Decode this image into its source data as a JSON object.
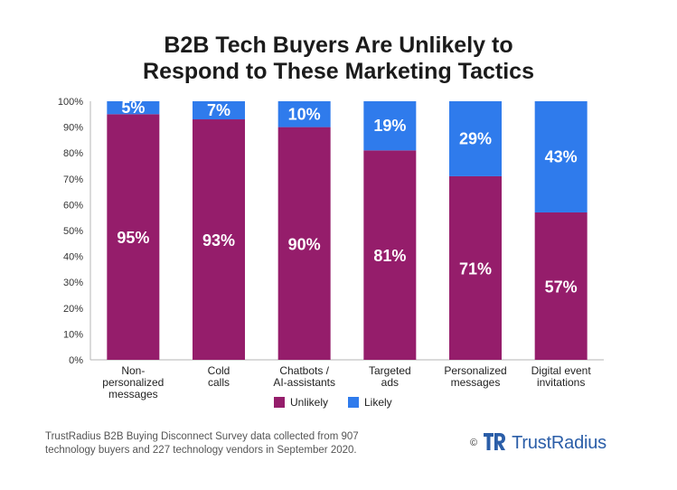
{
  "title_line1": "B2B Tech Buyers Are Unlikely to",
  "title_line2": "Respond to These Marketing Tactics",
  "chart_data": {
    "type": "bar",
    "stacked": true,
    "title": "B2B Tech Buyers Are Unlikely to Respond to These Marketing Tactics",
    "categories": [
      [
        "Non-",
        "personalized",
        "messages"
      ],
      [
        "Cold",
        "calls"
      ],
      [
        "Chatbots /",
        "AI-assistants"
      ],
      [
        "Targeted",
        "ads"
      ],
      [
        "Personalized",
        "messages"
      ],
      [
        "Digital event",
        "invitations"
      ]
    ],
    "series": [
      {
        "name": "Unlikely",
        "values": [
          95,
          93,
          90,
          81,
          71,
          57
        ],
        "color": "#951d6b"
      },
      {
        "name": "Likely",
        "values": [
          5,
          7,
          10,
          19,
          29,
          43
        ],
        "color": "#2f7bec"
      }
    ],
    "value_labels": {
      "Unlikely": [
        "95%",
        "93%",
        "90%",
        "81%",
        "71%",
        "57%"
      ],
      "Likely": [
        "5%",
        "7%",
        "10%",
        "19%",
        "29%",
        "43%"
      ]
    },
    "ylim": [
      0,
      100
    ],
    "yticks": [
      "0%",
      "10%",
      "20%",
      "30%",
      "40%",
      "50%",
      "60%",
      "70%",
      "80%",
      "90%",
      "100%"
    ],
    "grid": false,
    "legend": "bottom-center"
  },
  "footer": {
    "source_line1": "TrustRadius B2B Buying Disconnect Survey data collected from 907",
    "source_line2": "technology buyers and 227 technology vendors in September 2020.",
    "copyright": "©",
    "brand_name": "TrustRadius"
  },
  "colors": {
    "unlikely": "#951d6b",
    "likely": "#2f7bec",
    "brand": "#2b5ea8"
  },
  "icons": {
    "brand_logo": "trustradius-logo-icon"
  }
}
